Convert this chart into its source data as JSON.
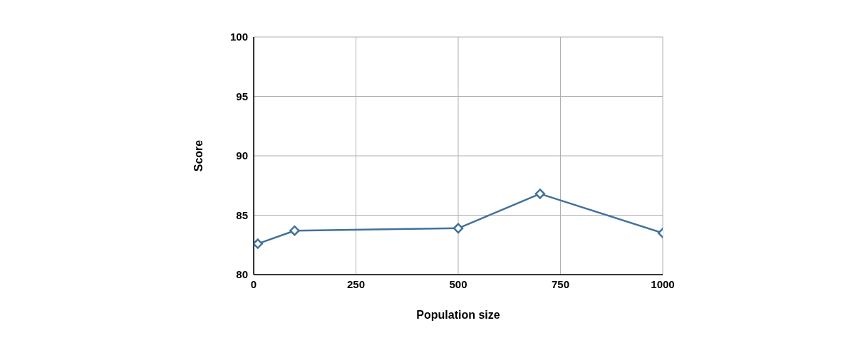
{
  "chart_data": {
    "type": "line",
    "xlabel": "Population size",
    "ylabel": "Score",
    "x": [
      10,
      100,
      500,
      700,
      1000
    ],
    "series": [
      {
        "color": "#41719c",
        "values": [
          82.6,
          83.7,
          83.9,
          86.8,
          83.5
        ]
      }
    ],
    "xlim": [
      0,
      1000
    ],
    "xticks": [
      0,
      250,
      500,
      750,
      1000
    ],
    "ylim": [
      80,
      100
    ],
    "yticks": [
      80,
      85,
      90,
      95,
      100
    ],
    "grid": true,
    "legend": false,
    "marker": "diamond",
    "line_style": "solid"
  }
}
